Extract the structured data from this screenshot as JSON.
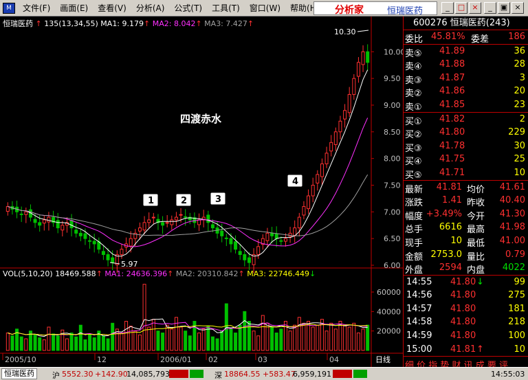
{
  "menubar": {
    "app_icon": "chart-icon",
    "menus": [
      "文件(F)",
      "画面(E)",
      "查看(V)",
      "分析(A)",
      "公式(T)",
      "工具(T)",
      "窗口(W)",
      "帮助(H)"
    ],
    "brand_name": "分析家",
    "brand_stock": "恒瑞医药"
  },
  "chart": {
    "price_legend": {
      "name": "恒瑞医药",
      "arrow": "↑",
      "period": "135(13,34,55)",
      "ma1": "MA1: 9.179",
      "ma2": "MA2: 8.042",
      "ma3": "MA3: 7.427"
    },
    "vol_legend": {
      "title": "VOL(5,10,20)",
      "value": "18469.588",
      "ma1": "MA1: 24636.396",
      "ma2": "MA2: 20310.842",
      "ma3": "MA3: 22746.449"
    },
    "annotation": "四渡赤水",
    "markers": [
      "1",
      "2",
      "3",
      "4"
    ],
    "high_label": "10.30",
    "low_label": "5.97",
    "price_axis": [
      "10.00",
      "9.50",
      "9.00",
      "8.50",
      "8.00",
      "7.50",
      "7.00",
      "6.50",
      "6.00"
    ],
    "vol_axis": [
      "60000",
      "40000",
      "20000"
    ],
    "date_axis": [
      "2005/10",
      "12",
      "2006/01",
      "02",
      "03",
      "04"
    ],
    "period_label": "日线",
    "colors": {
      "up": "#ff3030",
      "down": "#00c000",
      "ma1": "#ffffff",
      "ma2": "#ff30ff",
      "ma3": "#a0a0a0"
    }
  },
  "chart_data": {
    "type": "candlestick",
    "price_min": 6.0,
    "price_max": 10.3,
    "key_prices": {
      "high": 10.3,
      "low": 5.97,
      "last": 41.81
    },
    "close_series": [
      7.1,
      7.05,
      7.0,
      6.95,
      7.0,
      6.9,
      6.8,
      6.75,
      6.85,
      6.9,
      6.8,
      6.7,
      6.75,
      6.8,
      6.7,
      6.6,
      6.55,
      6.5,
      6.45,
      6.4,
      6.3,
      6.2,
      6.1,
      6.05,
      6.2,
      6.3,
      6.4,
      6.5,
      6.6,
      6.7,
      6.8,
      6.85,
      6.9,
      6.8,
      6.75,
      6.8,
      6.85,
      6.9,
      6.95,
      6.9,
      6.85,
      6.8,
      6.85,
      6.9,
      6.8,
      6.7,
      6.6,
      6.55,
      6.5,
      6.4,
      6.3,
      6.2,
      6.1,
      6.05,
      6.2,
      6.35,
      6.5,
      6.6,
      6.55,
      6.5,
      6.45,
      6.5,
      6.6,
      6.7,
      6.9,
      7.1,
      7.3,
      7.5,
      7.7,
      7.9,
      8.1,
      8.3,
      8.5,
      8.7,
      8.9,
      9.2,
      9.5,
      9.8,
      10.0,
      9.8
    ],
    "volume_series": [
      18000,
      15000,
      22000,
      14000,
      12000,
      20000,
      16000,
      13000,
      11000,
      24000,
      17000,
      15000,
      21000,
      12000,
      18000,
      14000,
      26000,
      11000,
      16000,
      13000,
      20000,
      15000,
      12000,
      28000,
      22000,
      18000,
      30000,
      25000,
      20000,
      16000,
      68000,
      24000,
      32000,
      20000,
      18000,
      26000,
      22000,
      34000,
      24000,
      20000,
      15000,
      30000,
      18000,
      22000,
      25000,
      14000,
      12000,
      20000,
      48000,
      22000,
      18000,
      26000,
      40000,
      30000,
      20000,
      15000,
      36000,
      28000,
      24000,
      18000,
      22000,
      30000,
      20000,
      26000,
      34000,
      28000,
      30000,
      24000,
      26000,
      32000,
      20000,
      28000,
      22000,
      30000,
      26000,
      24000,
      28000,
      18000,
      22000,
      26000
    ]
  },
  "quote": {
    "header": "600276 恒瑞医药(243)",
    "weibi": {
      "label": "委比",
      "value": "45.81%",
      "label2": "委差",
      "value2": "186"
    },
    "sells": [
      {
        "label": "卖⑤",
        "price": "41.89",
        "vol": "36"
      },
      {
        "label": "卖④",
        "price": "41.88",
        "vol": "28"
      },
      {
        "label": "卖③",
        "price": "41.87",
        "vol": "3"
      },
      {
        "label": "卖②",
        "price": "41.86",
        "vol": "20"
      },
      {
        "label": "卖①",
        "price": "41.85",
        "vol": "23"
      }
    ],
    "buys": [
      {
        "label": "买①",
        "price": "41.82",
        "vol": "2"
      },
      {
        "label": "买②",
        "price": "41.80",
        "vol": "229"
      },
      {
        "label": "买③",
        "price": "41.78",
        "vol": "30"
      },
      {
        "label": "买④",
        "price": "41.75",
        "vol": "25"
      },
      {
        "label": "买⑤",
        "price": "41.71",
        "vol": "10"
      }
    ],
    "stats": [
      {
        "l1": "最新",
        "v1": "41.81",
        "l2": "均价",
        "v2": "41.61"
      },
      {
        "l1": "涨跌",
        "v1": "1.41",
        "l2": "昨收",
        "v2": "40.40"
      },
      {
        "l1": "幅度",
        "v1": "+3.49%",
        "l2": "今开",
        "v2": "41.30"
      },
      {
        "l1": "总手",
        "v1": "6616",
        "l2": "最高",
        "v2": "41.98"
      },
      {
        "l1": "现手",
        "v1": "10",
        "l2": "最低",
        "v2": "41.00"
      },
      {
        "l1": "金额",
        "v1": "2753.0",
        "l2": "量比",
        "v2": "0.79"
      },
      {
        "l1": "外盘",
        "v1": "2594",
        "l2": "内盘",
        "v2": "4022"
      }
    ],
    "ticks": [
      {
        "time": "14:55",
        "price": "41.80",
        "arrow": "↓",
        "vol": "99"
      },
      {
        "time": "14:56",
        "price": "41.80",
        "arrow": "",
        "vol": "275"
      },
      {
        "time": "14:57",
        "price": "41.80",
        "arrow": "",
        "vol": "181"
      },
      {
        "time": "14:58",
        "price": "41.80",
        "arrow": "",
        "vol": "218"
      },
      {
        "time": "14:59",
        "price": "41.80",
        "arrow": "",
        "vol": "100"
      },
      {
        "time": "15:00",
        "price": "41.81",
        "arrow": "↑",
        "vol": "10"
      }
    ],
    "tabs": "细 价 指 势 财 讯 成 要 评"
  },
  "status": {
    "stock_tab": "恒瑞医药",
    "sh_label": "沪",
    "sh_index": "5552.30",
    "sh_change": "+142.90",
    "sh_vol": "14,085,793",
    "sz_label": "深",
    "sz_index": "18864.55",
    "sz_change": "+583.47",
    "sz_vol": "6,959,191",
    "time": "14:55:03"
  }
}
